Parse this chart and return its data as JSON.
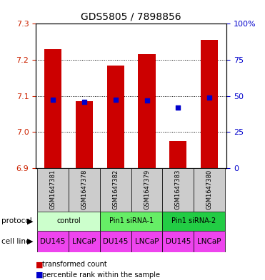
{
  "title": "GDS5805 / 7898856",
  "samples": [
    "GSM1647381",
    "GSM1647378",
    "GSM1647382",
    "GSM1647379",
    "GSM1647383",
    "GSM1647380"
  ],
  "red_values": [
    7.23,
    7.085,
    7.185,
    7.215,
    6.975,
    7.255
  ],
  "blue_values": [
    7.09,
    7.083,
    7.09,
    7.088,
    7.068,
    7.095
  ],
  "ylim_left": [
    6.9,
    7.3
  ],
  "ylim_right": [
    0,
    100
  ],
  "yticks_left": [
    6.9,
    7.0,
    7.1,
    7.2,
    7.3
  ],
  "yticks_right": [
    0,
    25,
    50,
    75,
    100
  ],
  "ytick_labels_right": [
    "0",
    "25",
    "50",
    "75",
    "100%"
  ],
  "bar_color": "#cc0000",
  "blue_color": "#0000cc",
  "bar_width": 0.55,
  "protocol_groups": [
    [
      0,
      1,
      "control"
    ],
    [
      2,
      3,
      "Pin1 siRNA-1"
    ],
    [
      4,
      5,
      "Pin1 siRNA-2"
    ]
  ],
  "protocol_colors": {
    "control": "#ccffcc",
    "Pin1 siRNA-1": "#66ee66",
    "Pin1 siRNA-2": "#22cc44"
  },
  "cell_lines": [
    "DU145",
    "LNCaP",
    "DU145",
    "LNCaP",
    "DU145",
    "LNCaP"
  ],
  "cell_line_color": "#ee44ee",
  "sample_box_color": "#cccccc",
  "legend_red_label": "transformed count",
  "legend_blue_label": "percentile rank within the sample",
  "left_tick_color": "#cc2200",
  "right_tick_color": "#0000cc",
  "title_fontsize": 10,
  "tick_fontsize": 8,
  "label_fontsize": 7.5,
  "cell_fontsize": 7.5,
  "sample_fontsize": 6,
  "legend_fontsize": 7
}
